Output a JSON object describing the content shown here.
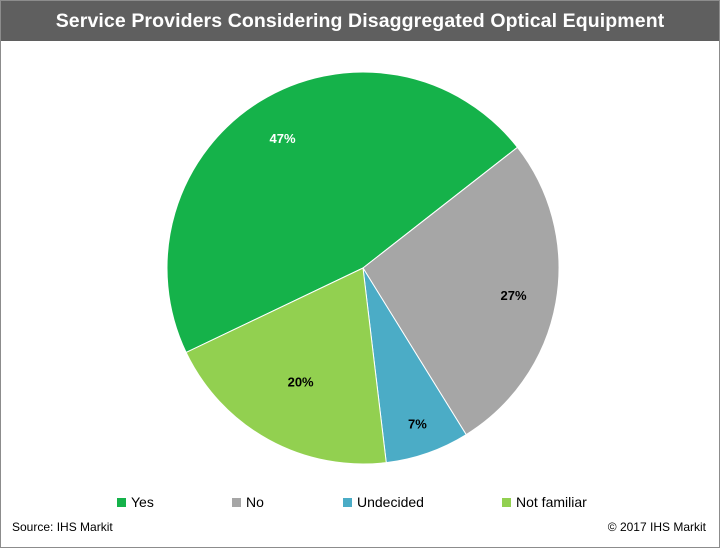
{
  "chart_data": {
    "type": "pie",
    "title": "Service Providers Considering Disaggregated Optical Equipment",
    "categories": [
      "Yes",
      "No",
      "Undecided",
      "Not familiar"
    ],
    "values": [
      47,
      27,
      7,
      20
    ],
    "value_labels": [
      "47%",
      "27%",
      "7%",
      "20%"
    ],
    "colors": [
      "#15b24a",
      "#a6a6a6",
      "#4bacc6",
      "#92d050"
    ],
    "legend_position": "bottom"
  },
  "footer": {
    "source": "Source:  IHS Markit",
    "copyright": "© 2017  IHS Markit"
  }
}
